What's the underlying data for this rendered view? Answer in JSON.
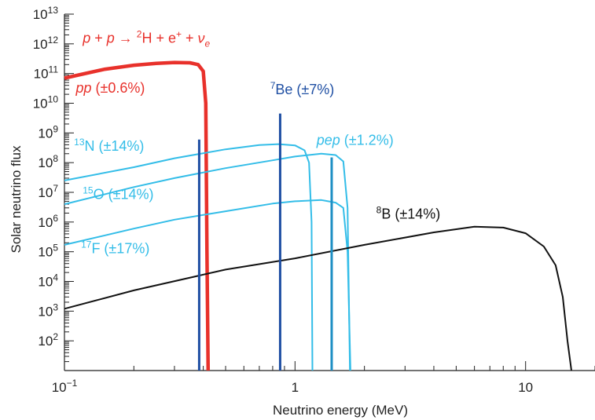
{
  "chart_data": {
    "type": "line",
    "xscale": "log",
    "yscale": "log",
    "xlim": [
      0.1,
      20
    ],
    "ylim": [
      10,
      10000000000000
    ],
    "xlabel": "Neutrino energy (MeV)",
    "ylabel": "Solar neutrino flux",
    "x_tick_labels": [
      {
        "x": 0.1,
        "base": "10",
        "exp": "−1"
      },
      {
        "x": 1,
        "base": "1",
        "exp": ""
      },
      {
        "x": 10,
        "base": "10",
        "exp": ""
      }
    ],
    "y_tick_labels": [
      {
        "y": 100,
        "base": "10",
        "exp": "2"
      },
      {
        "y": 1000,
        "base": "10",
        "exp": "3"
      },
      {
        "y": 10000,
        "base": "10",
        "exp": "4"
      },
      {
        "y": 100000,
        "base": "10",
        "exp": "5"
      },
      {
        "y": 1000000,
        "base": "10",
        "exp": "6"
      },
      {
        "y": 10000000,
        "base": "10",
        "exp": "7"
      },
      {
        "y": 100000000,
        "base": "10",
        "exp": "8"
      },
      {
        "y": 1000000000,
        "base": "10",
        "exp": "9"
      },
      {
        "y": 10000000000,
        "base": "10",
        "exp": "10"
      },
      {
        "y": 100000000000,
        "base": "10",
        "exp": "11"
      },
      {
        "y": 1000000000000,
        "base": "10",
        "exp": "12"
      },
      {
        "y": 10000000000000,
        "base": "10",
        "exp": "13"
      }
    ],
    "series": [
      {
        "key": "pp",
        "color": "#e8312b",
        "kind": "curve",
        "x": [
          0.1,
          0.15,
          0.2,
          0.25,
          0.3,
          0.35,
          0.38,
          0.4,
          0.41,
          0.415,
          0.42
        ],
        "y": [
          70000000000,
          140000000000,
          190000000000,
          220000000000,
          235000000000,
          230000000000,
          200000000000,
          120000000000,
          10000000000,
          100000,
          10
        ]
      },
      {
        "key": "N13",
        "color": "#33bde8",
        "kind": "curve",
        "x": [
          0.1,
          0.2,
          0.3,
          0.5,
          0.7,
          0.85,
          1.0,
          1.1,
          1.15,
          1.18,
          1.19
        ],
        "y": [
          25000000,
          70000000,
          140000000,
          280000000,
          390000000,
          420000000,
          380000000,
          260000000,
          100000000,
          1000000,
          10
        ]
      },
      {
        "key": "O15",
        "color": "#33bde8",
        "kind": "curve",
        "x": [
          0.1,
          0.2,
          0.3,
          0.5,
          0.8,
          1.0,
          1.3,
          1.5,
          1.62,
          1.69,
          1.73
        ],
        "y": [
          4000000,
          15000000,
          30000000,
          65000000,
          120000000,
          160000000,
          200000000,
          180000000,
          110000000,
          3000000,
          10
        ]
      },
      {
        "key": "F17",
        "color": "#33bde8",
        "kind": "curve",
        "x": [
          0.1,
          0.2,
          0.3,
          0.5,
          0.8,
          1.0,
          1.3,
          1.5,
          1.62,
          1.69,
          1.74
        ],
        "y": [
          170000,
          600000,
          1200000,
          2300000,
          4200000,
          5000000,
          5500000,
          4500000,
          3000000,
          100000,
          10
        ]
      },
      {
        "key": "B8",
        "color": "#111111",
        "kind": "curve",
        "x": [
          0.1,
          0.2,
          0.5,
          1.0,
          2.0,
          4.0,
          6.0,
          8.0,
          10.0,
          12.0,
          13.5,
          14.5,
          15.2,
          15.8
        ],
        "y": [
          1200,
          5000,
          25000,
          60000,
          170000,
          450000,
          700000,
          650000,
          420000,
          150000,
          35000,
          3000,
          100,
          10
        ]
      },
      {
        "key": "Be7_low",
        "color": "#1f4fa3",
        "kind": "line",
        "x": 0.384,
        "y": 600000000
      },
      {
        "key": "Be7_high",
        "color": "#1f4fa3",
        "kind": "line",
        "x": 0.862,
        "y": 4500000000
      },
      {
        "key": "pep",
        "color": "#1e8fc4",
        "kind": "line",
        "x": 1.442,
        "y": 150000000
      }
    ],
    "annotations": [
      {
        "key": "reaction",
        "color": "#e8312b",
        "x": 0.12,
        "y": 1100000000000,
        "parts": [
          {
            "t": "p",
            "it": true
          },
          {
            "t": " + "
          },
          {
            "t": "p",
            "it": true
          },
          {
            "t": " → "
          },
          {
            "t": "2",
            "sup": true
          },
          {
            "t": "H + e"
          },
          {
            "t": "+",
            "sup": true
          },
          {
            "t": " + "
          },
          {
            "t": "ν",
            "it": true
          },
          {
            "t": "e",
            "sub": true,
            "it": true
          }
        ]
      },
      {
        "key": "pp",
        "color": "#e8312b",
        "x": 0.112,
        "y": 23000000000,
        "parts": [
          {
            "t": "pp",
            "it": true
          },
          {
            "t": " (±0.6%)"
          }
        ]
      },
      {
        "key": "Be7",
        "color": "#1f4fa3",
        "x": 0.78,
        "y": 20000000000,
        "parts": [
          {
            "t": "7",
            "sup": true
          },
          {
            "t": "Be (±7%)"
          }
        ]
      },
      {
        "key": "N13",
        "color": "#33bde8",
        "x": 0.11,
        "y": 250000000,
        "parts": [
          {
            "t": "13",
            "sup": true
          },
          {
            "t": "N (±14%)"
          }
        ]
      },
      {
        "key": "pep",
        "color": "#33bde8",
        "x": 1.24,
        "y": 400000000,
        "parts": [
          {
            "t": "pep",
            "it": true
          },
          {
            "t": " (±1.2%)"
          }
        ]
      },
      {
        "key": "O15",
        "color": "#33bde8",
        "x": 0.12,
        "y": 6000000,
        "parts": [
          {
            "t": "15",
            "sup": true
          },
          {
            "t": "O (±14%)"
          }
        ]
      },
      {
        "key": "F17",
        "color": "#33bde8",
        "x": 0.118,
        "y": 90000,
        "parts": [
          {
            "t": "17",
            "sup": true
          },
          {
            "t": "F (±17%)"
          }
        ]
      },
      {
        "key": "B8",
        "color": "#111111",
        "x": 2.25,
        "y": 1300000,
        "parts": [
          {
            "t": "8",
            "sup": true
          },
          {
            "t": "B (±14%)"
          }
        ]
      }
    ]
  }
}
